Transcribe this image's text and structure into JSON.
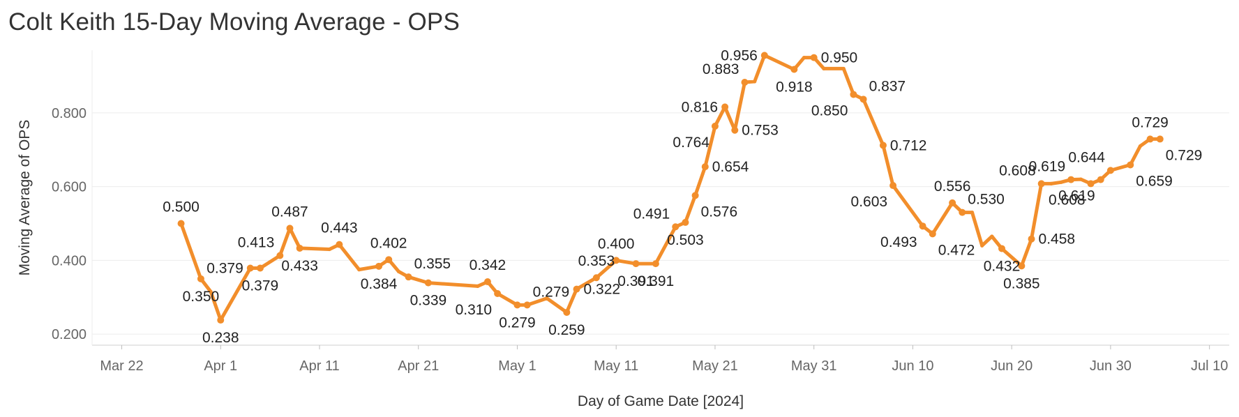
{
  "chart_data": {
    "type": "line",
    "title": "Colt Keith 15-Day Moving Average - OPS",
    "xlabel": "Day of Game Date [2024]",
    "ylabel": "Moving Average of OPS",
    "series_color": "#f28e2b",
    "grid": true,
    "x_start": "2024-03-22",
    "xlim_days": [
      -3,
      112
    ],
    "ylim": [
      0.17,
      0.97
    ],
    "y_ticks": [
      0.2,
      0.4,
      0.6,
      0.8
    ],
    "y_tick_labels": [
      "0.200",
      "0.400",
      "0.600",
      "0.800"
    ],
    "x_ticks": [
      0,
      10,
      20,
      30,
      40,
      50,
      60,
      70,
      80,
      90,
      100,
      110
    ],
    "x_tick_labels": [
      "Mar 22",
      "Apr 1",
      "Apr 11",
      "Apr 21",
      "May 1",
      "May 11",
      "May 21",
      "May 31",
      "Jun 10",
      "Jun 20",
      "Jun 30",
      "Jul 10"
    ],
    "series": [
      {
        "name": "Moving Average of OPS",
        "points": [
          {
            "day": 6,
            "value": 0.5,
            "label": "0.500",
            "label_pos": "above"
          },
          {
            "day": 8,
            "value": 0.35,
            "label": "0.350",
            "label_pos": "below"
          },
          {
            "day": 9,
            "value": 0.315
          },
          {
            "day": 10,
            "value": 0.238,
            "label": "0.238",
            "label_pos": "below"
          },
          {
            "day": 13,
            "value": 0.379,
            "label": "0.379",
            "label_pos": "left"
          },
          {
            "day": 14,
            "value": 0.379,
            "label": "0.379",
            "label_pos": "below"
          },
          {
            "day": 16,
            "value": 0.413,
            "label": "0.413",
            "label_pos": "aboveleft"
          },
          {
            "day": 17,
            "value": 0.487,
            "label": "0.487",
            "label_pos": "above"
          },
          {
            "day": 18,
            "value": 0.433,
            "label": "0.433",
            "label_pos": "below"
          },
          {
            "day": 21,
            "value": 0.43
          },
          {
            "day": 22,
            "value": 0.443,
            "label": "0.443",
            "label_pos": "above"
          },
          {
            "day": 24,
            "value": 0.375
          },
          {
            "day": 26,
            "value": 0.384,
            "label": "0.384",
            "label_pos": "below"
          },
          {
            "day": 27,
            "value": 0.402,
            "label": "0.402",
            "label_pos": "above"
          },
          {
            "day": 28,
            "value": 0.37
          },
          {
            "day": 29,
            "value": 0.355,
            "label": "0.355",
            "label_pos": "aboveright"
          },
          {
            "day": 31,
            "value": 0.339,
            "label": "0.339",
            "label_pos": "below"
          },
          {
            "day": 36,
            "value": 0.33
          },
          {
            "day": 37,
            "value": 0.342,
            "label": "0.342",
            "label_pos": "above"
          },
          {
            "day": 38,
            "value": 0.31,
            "label": "0.310",
            "label_pos": "belowleft"
          },
          {
            "day": 40,
            "value": 0.279,
            "label": "0.279",
            "label_pos": "below"
          },
          {
            "day": 41,
            "value": 0.279,
            "label": "0.279",
            "label_pos": "aboveright"
          },
          {
            "day": 43,
            "value": 0.297
          },
          {
            "day": 45,
            "value": 0.259,
            "label": "0.259",
            "label_pos": "below"
          },
          {
            "day": 46,
            "value": 0.322,
            "label": "0.322",
            "label_pos": "right"
          },
          {
            "day": 48,
            "value": 0.353,
            "label": "0.353",
            "label_pos": "above"
          },
          {
            "day": 50,
            "value": 0.4,
            "label": "0.400",
            "label_pos": "above"
          },
          {
            "day": 52,
            "value": 0.391,
            "label": "0.391",
            "label_pos": "below"
          },
          {
            "day": 54,
            "value": 0.391,
            "label": "0.391",
            "label_pos": "below"
          },
          {
            "day": 56,
            "value": 0.491,
            "label": "0.491",
            "label_pos": "aboveleft"
          },
          {
            "day": 57,
            "value": 0.503,
            "label": "0.503",
            "label_pos": "below"
          },
          {
            "day": 58,
            "value": 0.576,
            "label": "0.576",
            "label_pos": "belowright"
          },
          {
            "day": 59,
            "value": 0.654,
            "label": "0.654",
            "label_pos": "right"
          },
          {
            "day": 60,
            "value": 0.764,
            "label": "0.764",
            "label_pos": "belowleft"
          },
          {
            "day": 61,
            "value": 0.816,
            "label": "0.816",
            "label_pos": "left"
          },
          {
            "day": 62,
            "value": 0.753,
            "label": "0.753",
            "label_pos": "right"
          },
          {
            "day": 63,
            "value": 0.883,
            "label": "0.883",
            "label_pos": "aboveleft"
          },
          {
            "day": 64,
            "value": 0.885
          },
          {
            "day": 65,
            "value": 0.956,
            "label": "0.956",
            "label_pos": "left"
          },
          {
            "day": 68,
            "value": 0.918,
            "label": "0.918",
            "label_pos": "below"
          },
          {
            "day": 69,
            "value": 0.95
          },
          {
            "day": 70,
            "value": 0.95,
            "label": "0.950",
            "label_pos": "right"
          },
          {
            "day": 71,
            "value": 0.92
          },
          {
            "day": 73,
            "value": 0.92
          },
          {
            "day": 74,
            "value": 0.85,
            "label": "0.850",
            "label_pos": "belowleft"
          },
          {
            "day": 75,
            "value": 0.837,
            "label": "0.837",
            "label_pos": "aboveright"
          },
          {
            "day": 77,
            "value": 0.712,
            "label": "0.712",
            "label_pos": "right"
          },
          {
            "day": 78,
            "value": 0.603,
            "label": "0.603",
            "label_pos": "belowleft"
          },
          {
            "day": 81,
            "value": 0.493,
            "label": "0.493",
            "label_pos": "belowleft"
          },
          {
            "day": 82,
            "value": 0.472,
            "label": "0.472",
            "label_pos": "belowright"
          },
          {
            "day": 84,
            "value": 0.556,
            "label": "0.556",
            "label_pos": "above"
          },
          {
            "day": 85,
            "value": 0.53,
            "label": "0.530",
            "label_pos": "aboveright"
          },
          {
            "day": 86,
            "value": 0.53
          },
          {
            "day": 87,
            "value": 0.44
          },
          {
            "day": 88,
            "value": 0.465
          },
          {
            "day": 89,
            "value": 0.432,
            "label": "0.432",
            "label_pos": "below"
          },
          {
            "day": 91,
            "value": 0.385,
            "label": "0.385",
            "label_pos": "below"
          },
          {
            "day": 92,
            "value": 0.458,
            "label": "0.458",
            "label_pos": "right"
          },
          {
            "day": 93,
            "value": 0.608,
            "label": "0.608",
            "label_pos": "aboveleft"
          },
          {
            "day": 94,
            "value": 0.608
          },
          {
            "day": 95,
            "value": 0.612
          },
          {
            "day": 96,
            "value": 0.619,
            "label": "0.619",
            "label_pos": "aboveleft"
          },
          {
            "day": 97,
            "value": 0.62
          },
          {
            "day": 98,
            "value": 0.608,
            "label": "0.608",
            "label_pos": "belowleft"
          },
          {
            "day": 99,
            "value": 0.619,
            "label": "0.619",
            "label_pos": "belowleft"
          },
          {
            "day": 100,
            "value": 0.644,
            "label": "0.644",
            "label_pos": "aboveleft"
          },
          {
            "day": 102,
            "value": 0.659,
            "label": "0.659",
            "label_pos": "belowright"
          },
          {
            "day": 103,
            "value": 0.71
          },
          {
            "day": 104,
            "value": 0.729,
            "label": "0.729",
            "label_pos": "above"
          },
          {
            "day": 105,
            "value": 0.729,
            "label": "0.729",
            "label_pos": "belowright"
          }
        ]
      }
    ]
  }
}
